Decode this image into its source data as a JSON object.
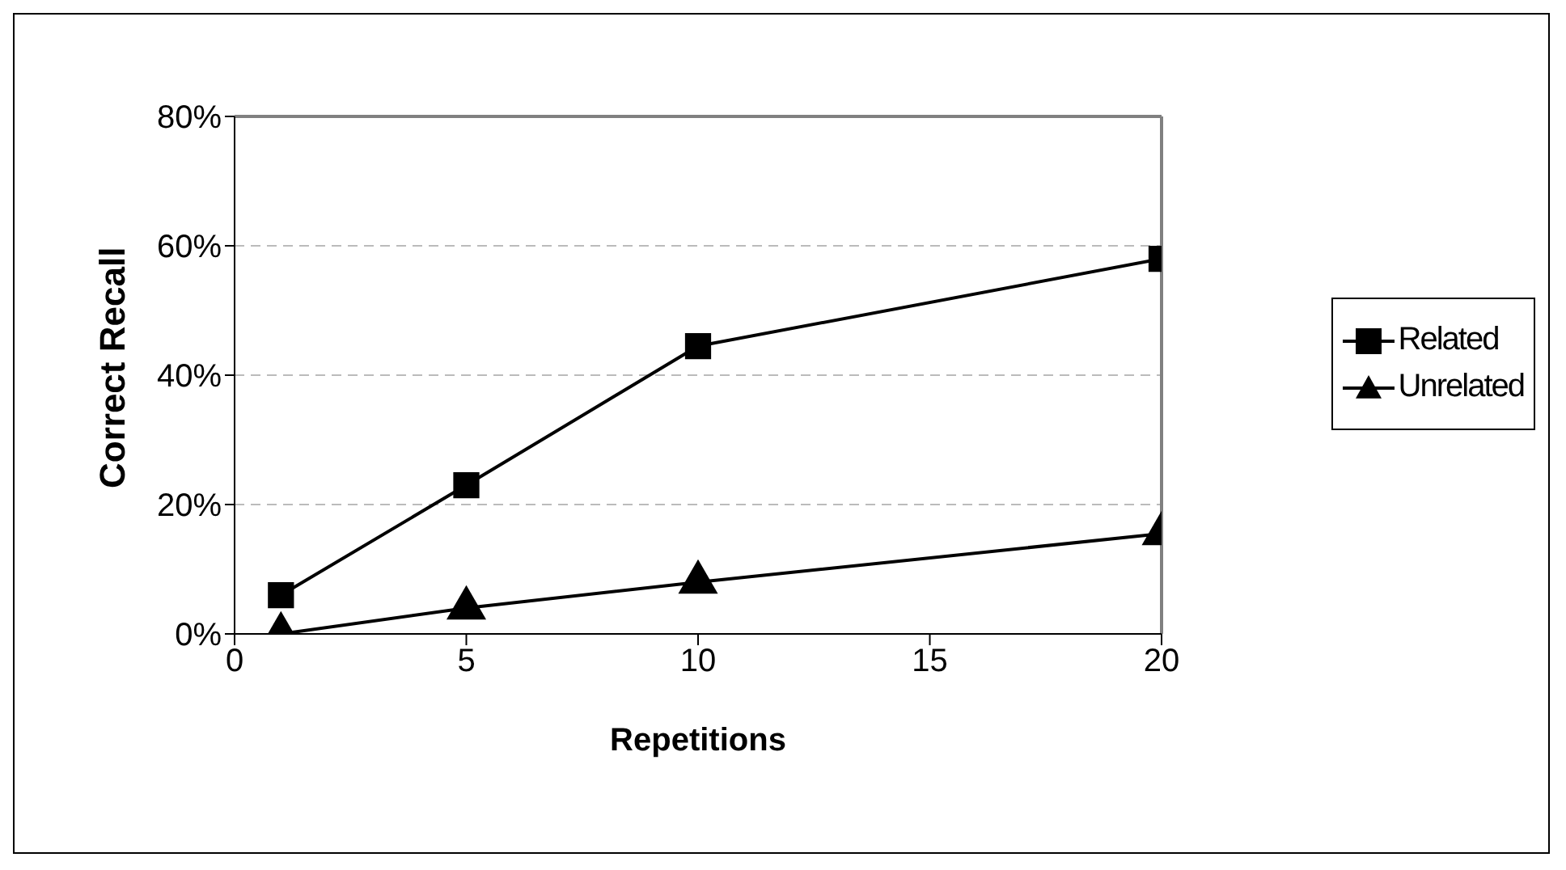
{
  "chart_data": {
    "type": "line",
    "xlabel": "Repetitions",
    "ylabel": "Correct Recall",
    "x": [
      1,
      5,
      10,
      20
    ],
    "series": [
      {
        "name": "Related",
        "color": "#000000",
        "marker": "square",
        "values": [
          6,
          23,
          44.5,
          58
        ]
      },
      {
        "name": "Unrelated",
        "color": "#000000",
        "marker": "triangle",
        "values": [
          0,
          4,
          8,
          15.5
        ]
      }
    ],
    "xlim": [
      0,
      20
    ],
    "xticks": [
      0,
      5,
      10,
      15,
      20
    ],
    "ylim": [
      0,
      80
    ],
    "yticks": [
      {
        "value": 0,
        "label": "0%"
      },
      {
        "value": 20,
        "label": "20%"
      },
      {
        "value": 40,
        "label": "40%"
      },
      {
        "value": 60,
        "label": "60%"
      },
      {
        "value": 80,
        "label": "80%"
      }
    ],
    "grid": "y",
    "legend": "right",
    "line_style": "solid"
  }
}
